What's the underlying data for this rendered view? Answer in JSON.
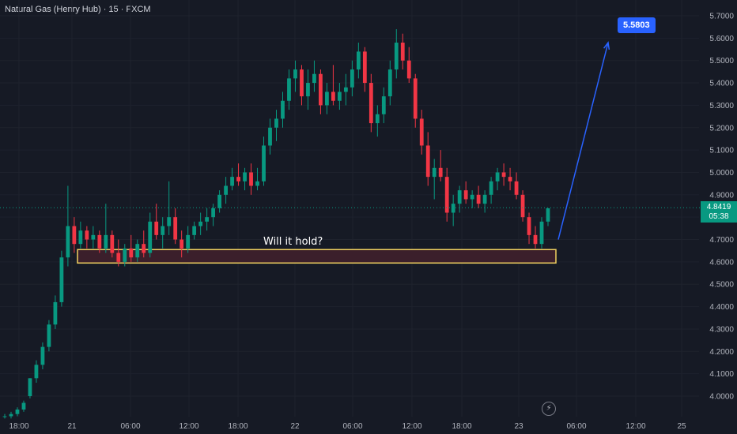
{
  "header": {
    "title": "Natural Gas (Henry Hub) · 15 · FXCM"
  },
  "current_price": {
    "value": "4.8419",
    "countdown": "05:38",
    "color": "#089981"
  },
  "target": {
    "label": "5.5803",
    "color": "#2962ff"
  },
  "zone": {
    "label": "Will it hold?",
    "low": 4.595,
    "high": 4.655,
    "border_color": "#f0d060",
    "fill_color": "#3b1f2b"
  },
  "icons": {
    "replay": "lightning-icon"
  },
  "colors": {
    "up": "#089981",
    "down": "#f23645",
    "background": "#161a25"
  },
  "chart_data": {
    "type": "candlestick",
    "title": "Natural Gas (Henry Hub) · 15 · FXCM",
    "ylim": [
      3.93,
      5.72
    ],
    "y_ticks": [
      "5.7000",
      "5.6000",
      "5.5000",
      "5.4000",
      "5.3000",
      "5.2000",
      "5.1000",
      "5.0000",
      "4.9000",
      "4.8000",
      "4.7000",
      "4.6000",
      "4.5000",
      "4.4000",
      "4.3000",
      "4.2000",
      "4.1000",
      "4.0000"
    ],
    "x_ticks": [
      "18:00",
      "21",
      "06:00",
      "12:00",
      "18:00",
      "22",
      "06:00",
      "12:00",
      "18:00",
      "23",
      "06:00",
      "12:00",
      "25"
    ],
    "series": [
      {
        "values": [
          [
            3.91,
            3.92,
            3.9,
            3.91
          ],
          [
            3.91,
            3.93,
            3.9,
            3.92
          ],
          [
            3.92,
            3.95,
            3.91,
            3.94
          ],
          [
            3.94,
            3.98,
            3.93,
            3.97
          ],
          [
            4.0,
            4.08,
            3.99,
            4.08
          ],
          [
            4.08,
            4.16,
            4.06,
            4.14
          ],
          [
            4.14,
            4.24,
            4.12,
            4.22
          ],
          [
            4.22,
            4.34,
            4.2,
            4.32
          ],
          [
            4.32,
            4.45,
            4.3,
            4.42
          ],
          [
            4.42,
            4.65,
            4.4,
            4.62
          ],
          [
            4.62,
            4.94,
            4.58,
            4.76
          ],
          [
            4.76,
            4.8,
            4.64,
            4.68
          ],
          [
            4.68,
            4.78,
            4.66,
            4.74
          ],
          [
            4.74,
            4.76,
            4.66,
            4.7
          ],
          [
            4.7,
            4.76,
            4.66,
            4.72
          ],
          [
            4.72,
            4.74,
            4.64,
            4.66
          ],
          [
            4.66,
            4.86,
            4.64,
            4.72
          ],
          [
            4.72,
            4.74,
            4.62,
            4.64
          ],
          [
            4.64,
            4.7,
            4.58,
            4.6
          ],
          [
            4.6,
            4.68,
            4.58,
            4.66
          ],
          [
            4.66,
            4.72,
            4.6,
            4.62
          ],
          [
            4.62,
            4.7,
            4.6,
            4.68
          ],
          [
            4.68,
            4.74,
            4.62,
            4.64
          ],
          [
            4.64,
            4.82,
            4.62,
            4.78
          ],
          [
            4.78,
            4.86,
            4.7,
            4.72
          ],
          [
            4.72,
            4.8,
            4.66,
            4.76
          ],
          [
            4.76,
            4.96,
            4.72,
            4.8
          ],
          [
            4.8,
            4.84,
            4.68,
            4.7
          ],
          [
            4.7,
            4.74,
            4.62,
            4.66
          ],
          [
            4.66,
            4.76,
            4.64,
            4.72
          ],
          [
            4.72,
            4.78,
            4.7,
            4.76
          ],
          [
            4.76,
            4.82,
            4.72,
            4.78
          ],
          [
            4.78,
            4.84,
            4.74,
            4.8
          ],
          [
            4.8,
            4.86,
            4.76,
            4.84
          ],
          [
            4.84,
            4.92,
            4.82,
            4.9
          ],
          [
            4.9,
            4.98,
            4.86,
            4.94
          ],
          [
            4.94,
            5.02,
            4.92,
            4.98
          ],
          [
            4.98,
            5.04,
            4.94,
            4.96
          ],
          [
            4.96,
            5.02,
            4.92,
            5.0
          ],
          [
            5.0,
            5.04,
            4.9,
            4.94
          ],
          [
            4.94,
            5.02,
            4.92,
            4.96
          ],
          [
            4.96,
            5.16,
            4.94,
            5.12
          ],
          [
            5.12,
            5.24,
            5.08,
            5.2
          ],
          [
            5.2,
            5.28,
            5.14,
            5.24
          ],
          [
            5.24,
            5.36,
            5.2,
            5.32
          ],
          [
            5.32,
            5.46,
            5.28,
            5.42
          ],
          [
            5.42,
            5.5,
            5.36,
            5.46
          ],
          [
            5.46,
            5.48,
            5.3,
            5.34
          ],
          [
            5.34,
            5.46,
            5.28,
            5.4
          ],
          [
            5.4,
            5.5,
            5.36,
            5.44
          ],
          [
            5.44,
            5.46,
            5.26,
            5.3
          ],
          [
            5.3,
            5.4,
            5.26,
            5.36
          ],
          [
            5.36,
            5.48,
            5.3,
            5.32
          ],
          [
            5.32,
            5.4,
            5.28,
            5.36
          ],
          [
            5.36,
            5.44,
            5.3,
            5.38
          ],
          [
            5.38,
            5.5,
            5.34,
            5.46
          ],
          [
            5.46,
            5.58,
            5.42,
            5.54
          ],
          [
            5.54,
            5.56,
            5.36,
            5.4
          ],
          [
            5.4,
            5.44,
            5.18,
            5.22
          ],
          [
            5.22,
            5.3,
            5.16,
            5.26
          ],
          [
            5.26,
            5.38,
            5.22,
            5.34
          ],
          [
            5.34,
            5.5,
            5.3,
            5.46
          ],
          [
            5.46,
            5.64,
            5.42,
            5.58
          ],
          [
            5.58,
            5.62,
            5.46,
            5.5
          ],
          [
            5.5,
            5.56,
            5.4,
            5.42
          ],
          [
            5.42,
            5.44,
            5.2,
            5.24
          ],
          [
            5.24,
            5.28,
            5.08,
            5.12
          ],
          [
            5.12,
            5.18,
            4.94,
            4.98
          ],
          [
            4.98,
            5.06,
            4.88,
            5.02
          ],
          [
            5.02,
            5.1,
            4.96,
            4.98
          ],
          [
            4.98,
            5.02,
            4.78,
            4.82
          ],
          [
            4.82,
            4.9,
            4.76,
            4.86
          ],
          [
            4.86,
            4.94,
            4.82,
            4.92
          ],
          [
            4.92,
            4.96,
            4.86,
            4.88
          ],
          [
            4.88,
            4.92,
            4.84,
            4.9
          ],
          [
            4.9,
            4.94,
            4.84,
            4.86
          ],
          [
            4.86,
            4.92,
            4.82,
            4.9
          ],
          [
            4.9,
            4.98,
            4.86,
            4.96
          ],
          [
            4.96,
            5.02,
            4.92,
            5.0
          ],
          [
            5.0,
            5.04,
            4.94,
            4.98
          ],
          [
            4.98,
            5.02,
            4.92,
            4.96
          ],
          [
            4.96,
            5.0,
            4.88,
            4.9
          ],
          [
            4.9,
            4.92,
            4.78,
            4.8
          ],
          [
            4.8,
            4.82,
            4.68,
            4.72
          ],
          [
            4.72,
            4.76,
            4.66,
            4.68
          ],
          [
            4.68,
            4.8,
            4.66,
            4.78
          ],
          [
            4.78,
            4.84,
            4.76,
            4.84
          ]
        ]
      }
    ]
  }
}
